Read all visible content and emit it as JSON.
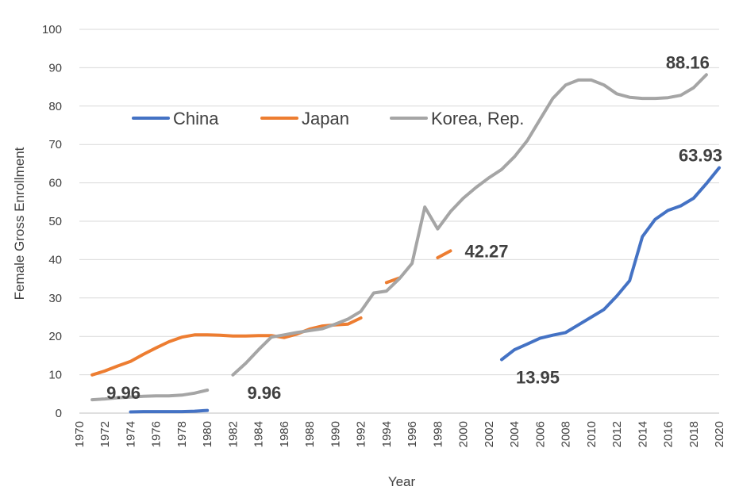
{
  "chart_data": {
    "type": "line",
    "title": "",
    "xlabel": "Year",
    "ylabel": "Female Gross Enrollment",
    "xlim": [
      1970,
      2020
    ],
    "ylim": [
      0,
      100
    ],
    "yticks": [
      "0",
      "10",
      "20",
      "30",
      "40",
      "50",
      "60",
      "70",
      "80",
      "90",
      "100"
    ],
    "xticks": [
      "1970",
      "1972",
      "1974",
      "1976",
      "1978",
      "1980",
      "1982",
      "1984",
      "1986",
      "1988",
      "1990",
      "1992",
      "1994",
      "1996",
      "1998",
      "2000",
      "2002",
      "2004",
      "2006",
      "2008",
      "2010",
      "2012",
      "2014",
      "2016",
      "2018",
      "2020"
    ],
    "grid": true,
    "legend": {
      "placement": "top-left"
    },
    "series": [
      {
        "name": "China",
        "color": "#4472C4",
        "segments": [
          [
            [
              1974,
              0.3
            ],
            [
              1975,
              0.4
            ],
            [
              1976,
              0.4
            ],
            [
              1977,
              0.4
            ],
            [
              1978,
              0.4
            ],
            [
              1979,
              0.5
            ],
            [
              1980,
              0.7
            ]
          ],
          [
            [
              2003,
              13.95
            ],
            [
              2004,
              16.5
            ],
            [
              2005,
              18.0
            ],
            [
              2006,
              19.5
            ],
            [
              2007,
              20.3
            ],
            [
              2008,
              21.0
            ],
            [
              2009,
              23.0
            ],
            [
              2010,
              25.0
            ],
            [
              2011,
              27.0
            ],
            [
              2012,
              30.5
            ],
            [
              2013,
              34.5
            ],
            [
              2014,
              46.0
            ],
            [
              2015,
              50.5
            ],
            [
              2016,
              52.8
            ],
            [
              2017,
              54.0
            ],
            [
              2018,
              56.0
            ],
            [
              2019,
              59.8
            ],
            [
              2020,
              63.93
            ]
          ]
        ]
      },
      {
        "name": "Japan",
        "color": "#ED7D31",
        "segments": [
          [
            [
              1971,
              9.96
            ],
            [
              1972,
              11.0
            ],
            [
              1973,
              12.3
            ],
            [
              1974,
              13.5
            ],
            [
              1975,
              15.3
            ],
            [
              1976,
              17.0
            ],
            [
              1977,
              18.6
            ],
            [
              1978,
              19.8
            ],
            [
              1979,
              20.4
            ],
            [
              1980,
              20.4
            ],
            [
              1981,
              20.3
            ],
            [
              1982,
              20.1
            ],
            [
              1983,
              20.1
            ],
            [
              1984,
              20.2
            ],
            [
              1985,
              20.2
            ],
            [
              1986,
              19.7
            ],
            [
              1987,
              20.6
            ],
            [
              1988,
              21.9
            ],
            [
              1989,
              22.7
            ],
            [
              1990,
              23.0
            ],
            [
              1991,
              23.2
            ],
            [
              1992,
              24.8
            ]
          ],
          [
            [
              1994,
              34.0
            ],
            [
              1995,
              35.2
            ]
          ],
          [
            [
              1998,
              40.5
            ],
            [
              1999,
              42.27
            ]
          ]
        ]
      },
      {
        "name": "Korea, Rep.",
        "color": "#A5A5A5",
        "segments": [
          [
            [
              1971,
              3.5
            ],
            [
              1972,
              3.7
            ],
            [
              1973,
              4.0
            ],
            [
              1974,
              4.2
            ],
            [
              1975,
              4.4
            ],
            [
              1976,
              4.5
            ],
            [
              1977,
              4.5
            ],
            [
              1978,
              4.7
            ],
            [
              1979,
              5.2
            ],
            [
              1980,
              6.0
            ]
          ],
          [
            [
              1982,
              9.96
            ],
            [
              1983,
              13.0
            ],
            [
              1984,
              16.5
            ],
            [
              1985,
              19.8
            ],
            [
              1986,
              20.4
            ],
            [
              1987,
              21.0
            ],
            [
              1988,
              21.5
            ],
            [
              1989,
              22.0
            ],
            [
              1990,
              23.2
            ],
            [
              1991,
              24.5
            ],
            [
              1992,
              26.5
            ],
            [
              1993,
              31.3
            ],
            [
              1994,
              31.8
            ],
            [
              1995,
              35.0
            ],
            [
              1996,
              39.0
            ],
            [
              1997,
              53.7
            ],
            [
              1998,
              48.0
            ],
            [
              1999,
              52.5
            ],
            [
              2000,
              56.0
            ],
            [
              2001,
              58.8
            ],
            [
              2002,
              61.3
            ],
            [
              2003,
              63.5
            ],
            [
              2004,
              66.8
            ],
            [
              2005,
              71.0
            ],
            [
              2006,
              76.5
            ],
            [
              2007,
              82.0
            ],
            [
              2008,
              85.5
            ],
            [
              2009,
              86.8
            ],
            [
              2010,
              86.8
            ],
            [
              2011,
              85.5
            ],
            [
              2012,
              83.2
            ],
            [
              2013,
              82.3
            ],
            [
              2014,
              82.0
            ],
            [
              2015,
              82.0
            ],
            [
              2016,
              82.2
            ],
            [
              2017,
              82.8
            ],
            [
              2018,
              84.8
            ],
            [
              2019,
              88.16
            ]
          ]
        ]
      }
    ],
    "annotations": [
      {
        "text": "9.96",
        "x": 1971,
        "y": 9.96,
        "anchor": "below-right"
      },
      {
        "text": "9.96",
        "x": 1982,
        "y": 9.96,
        "anchor": "below-right"
      },
      {
        "text": "42.27",
        "x": 1999,
        "y": 42.27,
        "anchor": "right"
      },
      {
        "text": "13.95",
        "x": 2003,
        "y": 13.95,
        "anchor": "below-right"
      },
      {
        "text": "63.93",
        "x": 2020,
        "y": 63.93,
        "anchor": "above-left"
      },
      {
        "text": "88.16",
        "x": 2019,
        "y": 88.16,
        "anchor": "above-left"
      }
    ]
  }
}
